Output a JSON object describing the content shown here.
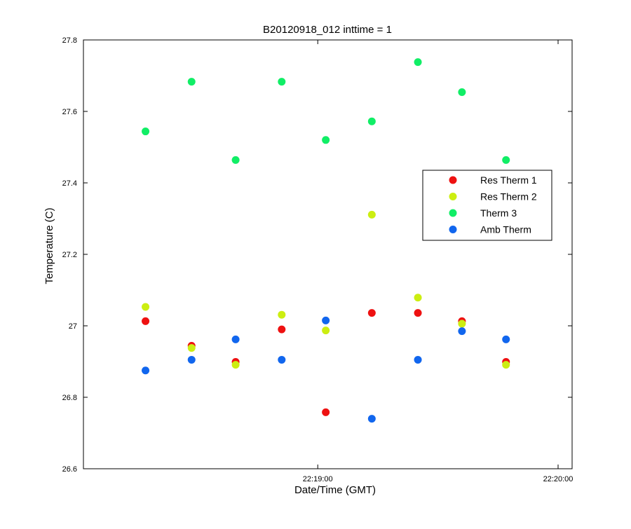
{
  "chart_data": {
    "type": "scatter",
    "title": "B20120918_012 inttime = 1",
    "xlabel": "Date/Time (GMT)",
    "ylabel": "Temperature (C)",
    "x_unit": "time (GMT)",
    "xlim": [
      "22:18:01.5",
      "22:20:03.5"
    ],
    "ylim": [
      26.6,
      27.8
    ],
    "x_ticks": [
      "22:19:00",
      "22:20:00"
    ],
    "y_ticks": [
      26.6,
      26.8,
      27.0,
      27.2,
      27.4,
      27.6,
      27.8
    ],
    "y_tick_labels": [
      "26.6",
      "26.8",
      "27",
      "27.2",
      "27.4",
      "27.6",
      "27.8"
    ],
    "grid": false,
    "legend_position": "right",
    "x": [
      "22:18:17",
      "22:18:28.5",
      "22:18:39.5",
      "22:18:51",
      "22:19:02",
      "22:19:13.5",
      "22:19:25",
      "22:19:36",
      "22:19:47"
    ],
    "series": [
      {
        "name": "Res Therm 1",
        "color": "#ee1111",
        "values": [
          27.013,
          26.944,
          26.899,
          26.99,
          26.758,
          27.036,
          27.036,
          27.013,
          26.899
        ]
      },
      {
        "name": "Res Therm 2",
        "color": "#ccee11",
        "values": [
          27.053,
          26.938,
          26.891,
          27.031,
          26.987,
          27.311,
          27.079,
          27.006,
          26.891
        ]
      },
      {
        "name": "Therm 3",
        "color": "#11ee66",
        "values": [
          27.544,
          27.683,
          27.464,
          27.683,
          27.52,
          27.572,
          27.738,
          27.654,
          27.464
        ]
      },
      {
        "name": "Amb Therm",
        "color": "#1166ee",
        "values": [
          26.875,
          26.905,
          26.962,
          26.905,
          27.015,
          26.74,
          26.905,
          26.985,
          26.962
        ]
      }
    ]
  }
}
